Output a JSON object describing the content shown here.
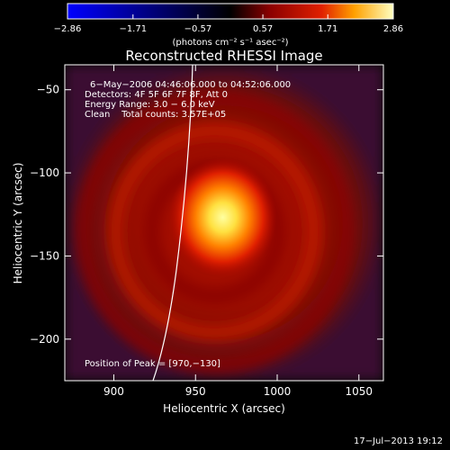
{
  "chart_data": {
    "type": "heatmap",
    "title": "Reconstructed RHESSI Image",
    "xlabel": "Heliocentric X (arcsec)",
    "ylabel": "Heliocentric Y (arcsec)",
    "xlim": [
      870,
      1065
    ],
    "ylim": [
      -225,
      -35
    ],
    "xticks": [
      900,
      950,
      1000,
      1050
    ],
    "xtick_labels": [
      "900",
      "950",
      "1000",
      "1050"
    ],
    "yticks": [
      -50,
      -100,
      -150,
      -200
    ],
    "ytick_labels": [
      "−50",
      "−100",
      "−150",
      "−200"
    ],
    "colorbar": {
      "min": -2.86,
      "max": 2.86,
      "ticks": [
        -2.86,
        -1.71,
        -0.57,
        0.57,
        1.71,
        2.86
      ],
      "tick_labels": [
        "−2.86",
        "−1.71",
        "−0.57",
        "0.57",
        "1.71",
        "2.86"
      ],
      "label": "(photons cm⁻² s⁻¹ asec⁻²)"
    },
    "peak": {
      "x": 970,
      "y": -130,
      "value": 2.86
    },
    "ring_intensity": 0.45,
    "annotations": [
      "6−May−2006 04:46:06.000 to 04:52:06.000",
      "Detectors: 4F 5F 6F 7F 8F, Att 0",
      "Energy Range: 3.0 − 6.0 keV",
      "Clean    Total counts: 3.57E+05"
    ],
    "peak_label": "Position of Peak = [970,−130]",
    "grid": false
  },
  "footer": {
    "timestamp": "17−Jul−2013 19:12"
  },
  "colors": {
    "background": "#000000",
    "foreground": "#ffffff"
  }
}
